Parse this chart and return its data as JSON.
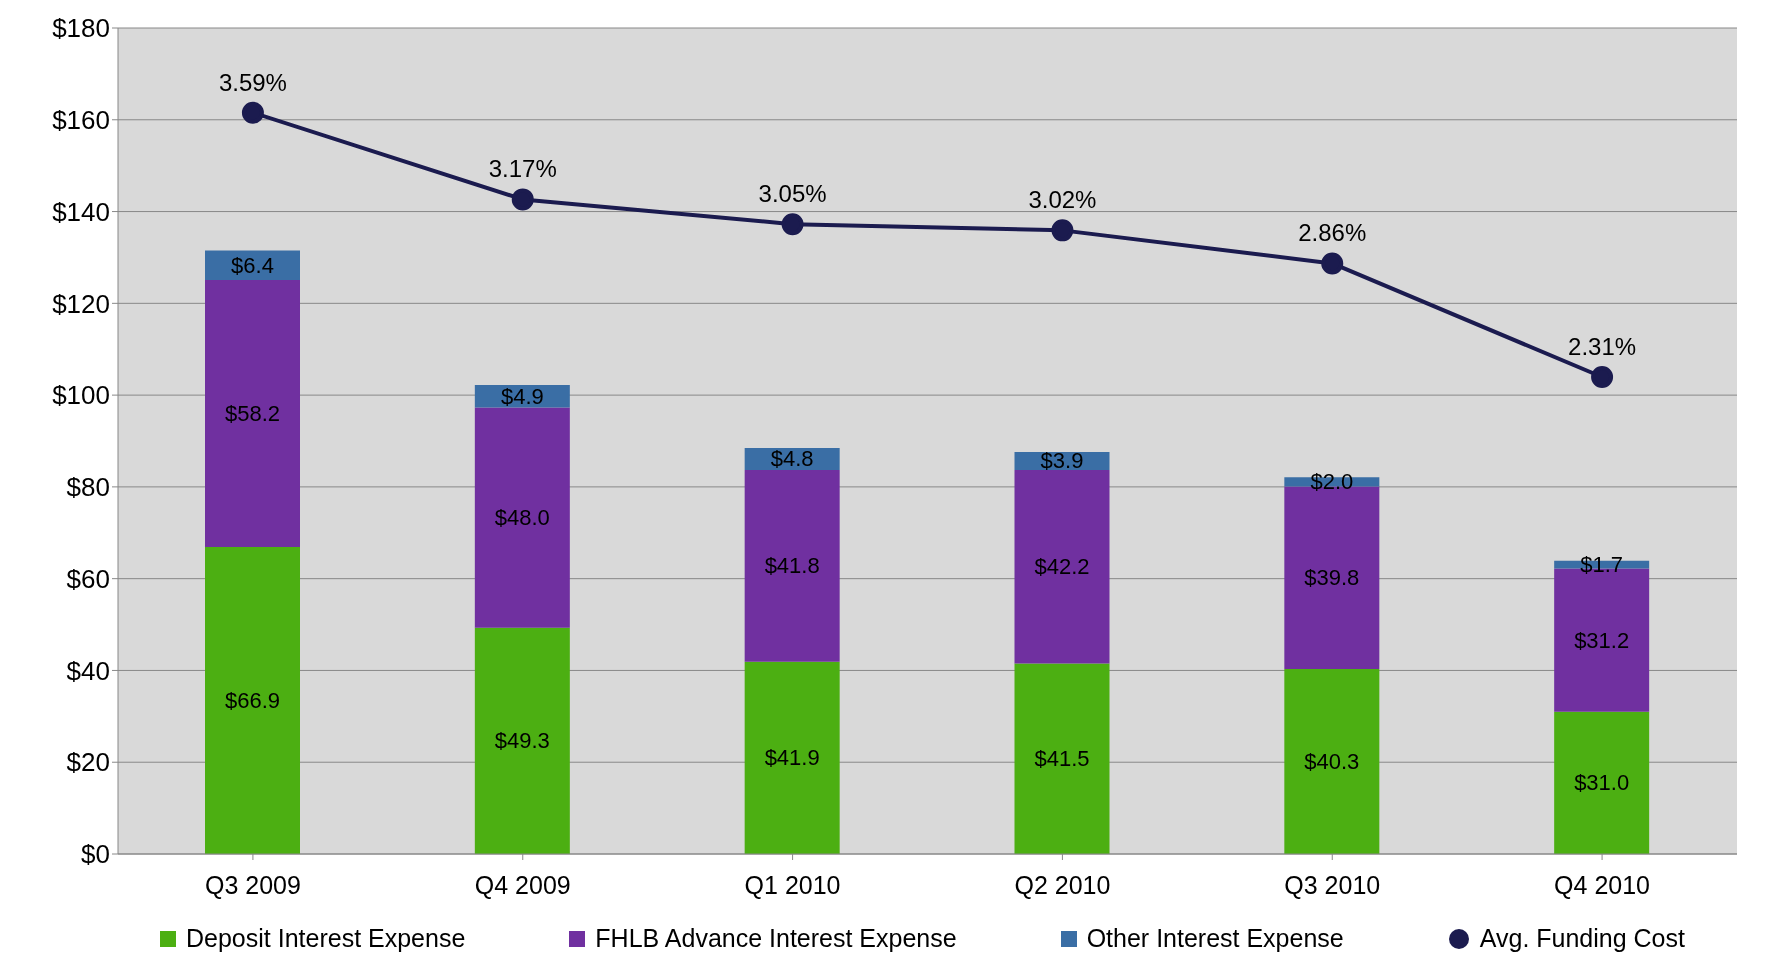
{
  "chart_data": {
    "type": "bar",
    "stacked": true,
    "categories": [
      "Q3 2009",
      "Q4 2009",
      "Q1 2010",
      "Q2 2010",
      "Q3 2010",
      "Q4 2010"
    ],
    "series": [
      {
        "name": "Deposit Interest Expense",
        "color": "#4caf12",
        "values": [
          66.9,
          49.3,
          41.9,
          41.5,
          40.3,
          31.0
        ],
        "value_labels": [
          "$66.9",
          "$49.3",
          "$41.9",
          "$41.5",
          "$40.3",
          "$31.0"
        ]
      },
      {
        "name": "FHLB Advance Interest Expense",
        "color": "#7030a0",
        "values": [
          58.2,
          48.0,
          41.8,
          42.2,
          39.8,
          31.2
        ],
        "value_labels": [
          "$58.2",
          "$48.0",
          "$41.8",
          "$42.2",
          "$39.8",
          "$31.2"
        ]
      },
      {
        "name": "Other Interest Expense",
        "color": "#3a6ea5",
        "values": [
          6.4,
          4.9,
          4.8,
          3.9,
          2.0,
          1.7
        ],
        "value_labels": [
          "$6.4",
          "$4.9",
          "$4.8",
          "$3.9",
          "$2.0",
          "$1.7"
        ]
      },
      {
        "name": "Avg. Funding Cost",
        "type": "line",
        "axis": "y2",
        "color": "#1b1b4f",
        "marker": "circle",
        "values": [
          3.59,
          3.17,
          3.05,
          3.02,
          2.86,
          2.31
        ],
        "value_labels": [
          "3.59%",
          "3.17%",
          "3.05%",
          "3.02%",
          "2.86%",
          "2.31%"
        ]
      }
    ],
    "ylim": [
      0,
      180
    ],
    "yticks": [
      {
        "value": 0,
        "label": "$0"
      },
      {
        "value": 20,
        "label": "$20"
      },
      {
        "value": 40,
        "label": "$40"
      },
      {
        "value": 60,
        "label": "$60"
      },
      {
        "value": 80,
        "label": "$80"
      },
      {
        "value": 100,
        "label": "$100"
      },
      {
        "value": 120,
        "label": "$120"
      },
      {
        "value": 140,
        "label": "$140"
      },
      {
        "value": 160,
        "label": "$160"
      },
      {
        "value": 180,
        "label": "$180"
      }
    ],
    "y2lim": [
      0,
      4
    ],
    "grid": "y",
    "legend": "bottom"
  }
}
